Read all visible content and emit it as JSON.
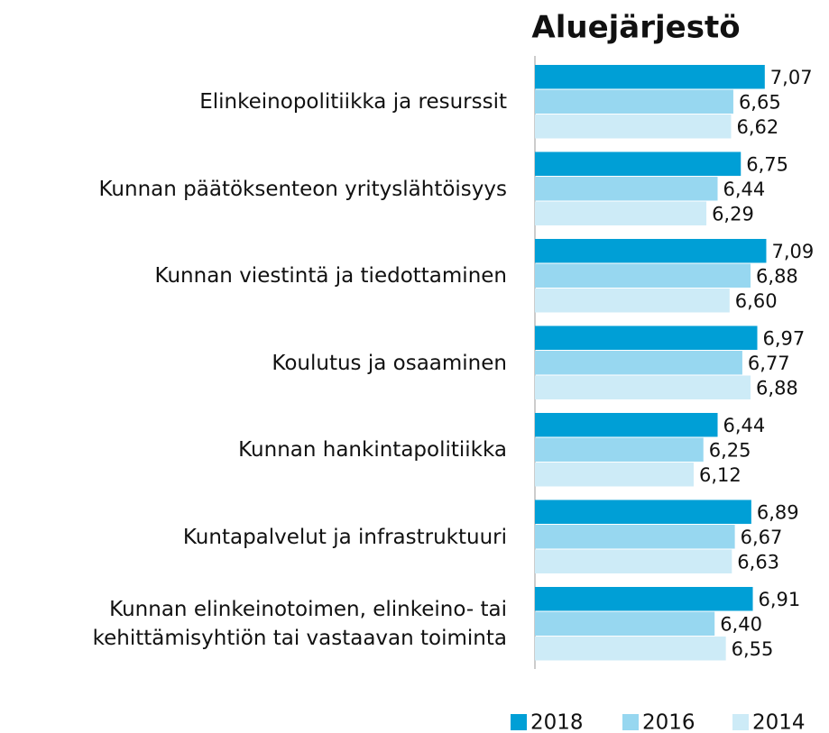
{
  "chart_data": {
    "type": "hbar",
    "title": "Aluejärjestö",
    "categories": [
      "Elinkeinopolitiikka ja resurssit",
      "Kunnan päätöksenteon yrityslähtöisyys",
      "Kunnan viestintä ja tiedottaminen",
      "Koulutus ja osaaminen",
      "Kunnan hankintapolitiikka",
      "Kuntapalvelut ja infrastruktuuri",
      "Kunnan elinkeinotoimen, elinkeino- tai\nkehittämisyhtiön tai vastaavan toiminta"
    ],
    "series": [
      {
        "name": "2018",
        "color": "#009fd6",
        "values": [
          7.07,
          6.75,
          7.09,
          6.97,
          6.44,
          6.89,
          6.91
        ],
        "value_labels": [
          "7,07",
          "6,75",
          "7,09",
          "6,97",
          "6,44",
          "6,89",
          "6,91"
        ]
      },
      {
        "name": "2016",
        "color": "#97d7f0",
        "values": [
          6.65,
          6.44,
          6.88,
          6.77,
          6.25,
          6.67,
          6.4
        ],
        "value_labels": [
          "6,65",
          "6,44",
          "6,88",
          "6,77",
          "6,25",
          "6,67",
          "6,40"
        ]
      },
      {
        "name": "2014",
        "color": "#cdebf7",
        "values": [
          6.62,
          6.29,
          6.6,
          6.88,
          6.12,
          6.63,
          6.55
        ],
        "value_labels": [
          "6,62",
          "6,29",
          "6,60",
          "6,88",
          "6,12",
          "6,63",
          "6,55"
        ]
      }
    ],
    "xlim": [
      4,
      8
    ],
    "legend": "bottom"
  }
}
